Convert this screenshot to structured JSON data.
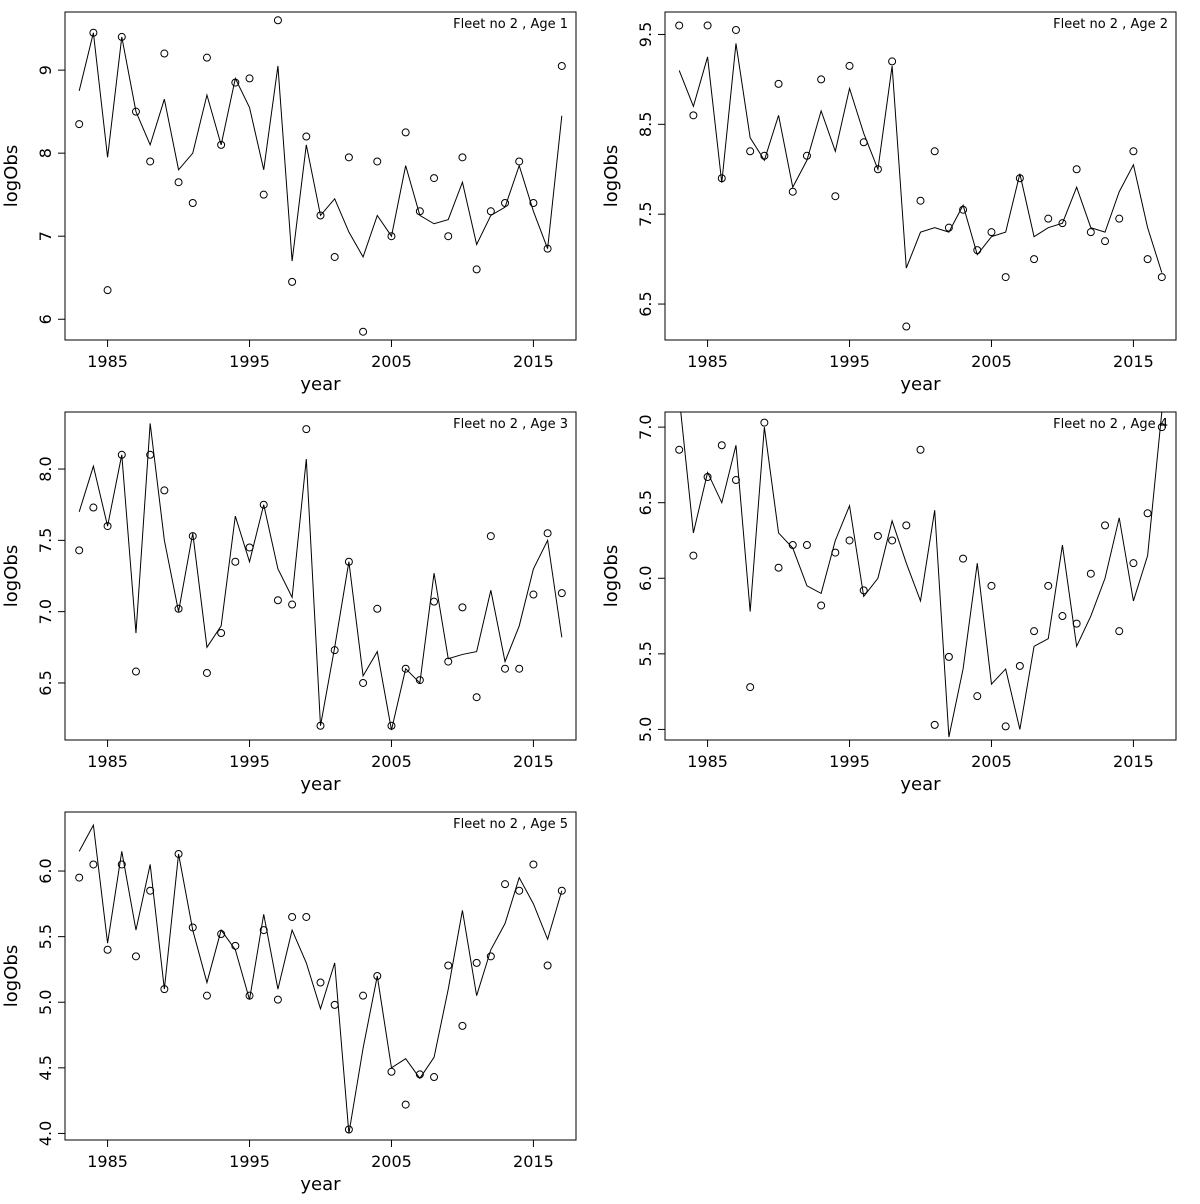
{
  "page": {
    "background": "#ffffff",
    "foreground": "#000000"
  },
  "chart_data": [
    {
      "type": "line",
      "title": "Fleet no 2 , Age 1",
      "xlabel": "year",
      "ylabel": "logObs",
      "legend": "none",
      "grid": false,
      "xlim": [
        1982,
        2018
      ],
      "ylim": [
        5.75,
        9.7
      ],
      "xticks": [
        1985,
        1995,
        2005,
        2015
      ],
      "xtick_labels": [
        "1985",
        "1995",
        "2005",
        "2015"
      ],
      "yticks": [
        6,
        7,
        8,
        9
      ],
      "ytick_labels": [
        "6",
        "7",
        "8",
        "9"
      ],
      "x": [
        1983,
        1984,
        1985,
        1986,
        1987,
        1988,
        1989,
        1990,
        1991,
        1992,
        1993,
        1994,
        1995,
        1996,
        1997,
        1998,
        1999,
        2000,
        2001,
        2002,
        2003,
        2004,
        2005,
        2006,
        2007,
        2008,
        2009,
        2010,
        2011,
        2012,
        2013,
        2014,
        2015,
        2016,
        2017
      ],
      "series": [
        {
          "name": "observed",
          "style": "points",
          "values": [
            8.35,
            9.45,
            6.35,
            9.4,
            8.5,
            7.9,
            9.2,
            7.65,
            7.4,
            9.15,
            8.1,
            8.85,
            8.9,
            7.5,
            9.6,
            6.45,
            8.2,
            7.25,
            6.75,
            7.95,
            5.85,
            7.9,
            7.0,
            8.25,
            7.3,
            7.7,
            7.0,
            7.95,
            6.6,
            7.3,
            7.4,
            7.9,
            7.4,
            6.85,
            9.05
          ]
        },
        {
          "name": "fitted",
          "style": "line",
          "values": [
            8.75,
            9.45,
            7.95,
            9.4,
            8.5,
            8.1,
            8.65,
            7.8,
            8.0,
            8.7,
            8.1,
            8.9,
            8.55,
            7.8,
            9.05,
            6.7,
            8.1,
            7.25,
            7.45,
            7.05,
            6.75,
            7.25,
            7.0,
            7.85,
            7.25,
            7.15,
            7.2,
            7.65,
            6.9,
            7.25,
            7.35,
            7.85,
            7.3,
            6.85,
            8.45
          ]
        }
      ]
    },
    {
      "type": "line",
      "title": "Fleet no 2 , Age 2",
      "xlabel": "year",
      "ylabel": "logObs",
      "legend": "none",
      "grid": false,
      "xlim": [
        1982,
        2018
      ],
      "ylim": [
        6.1,
        9.75
      ],
      "xticks": [
        1985,
        1995,
        2005,
        2015
      ],
      "xtick_labels": [
        "1985",
        "1995",
        "2005",
        "2015"
      ],
      "yticks": [
        6.5,
        7.5,
        8.5,
        9.5
      ],
      "ytick_labels": [
        "6.5",
        "7.5",
        "8.5",
        "9.5"
      ],
      "x": [
        1983,
        1984,
        1985,
        1986,
        1987,
        1988,
        1989,
        1990,
        1991,
        1992,
        1993,
        1994,
        1995,
        1996,
        1997,
        1998,
        1999,
        2000,
        2001,
        2002,
        2003,
        2004,
        2005,
        2006,
        2007,
        2008,
        2009,
        2010,
        2011,
        2012,
        2013,
        2014,
        2015,
        2016,
        2017
      ],
      "series": [
        {
          "name": "observed",
          "style": "points",
          "values": [
            9.6,
            8.6,
            9.6,
            7.9,
            9.55,
            8.2,
            8.15,
            8.95,
            7.75,
            8.15,
            9.0,
            7.7,
            9.15,
            8.3,
            8.0,
            9.2,
            6.25,
            7.65,
            8.2,
            7.35,
            7.55,
            7.1,
            7.3,
            6.8,
            7.9,
            7.0,
            7.45,
            7.4,
            8.0,
            7.3,
            7.2,
            7.45,
            8.2,
            7.0,
            6.8
          ]
        },
        {
          "name": "fitted",
          "style": "line",
          "values": [
            9.1,
            8.7,
            9.25,
            7.85,
            9.4,
            8.35,
            8.1,
            8.6,
            7.8,
            8.1,
            8.65,
            8.2,
            8.9,
            8.4,
            8.0,
            9.15,
            6.9,
            7.3,
            7.35,
            7.3,
            7.6,
            7.05,
            7.25,
            7.3,
            7.95,
            7.25,
            7.35,
            7.4,
            7.8,
            7.35,
            7.3,
            7.75,
            8.05,
            7.35,
            6.85
          ]
        }
      ]
    },
    {
      "type": "line",
      "title": "Fleet no 2 , Age 3",
      "xlabel": "year",
      "ylabel": "logObs",
      "legend": "none",
      "grid": false,
      "xlim": [
        1982,
        2018
      ],
      "ylim": [
        6.1,
        8.4
      ],
      "xticks": [
        1985,
        1995,
        2005,
        2015
      ],
      "xtick_labels": [
        "1985",
        "1995",
        "2005",
        "2015"
      ],
      "yticks": [
        6.5,
        7.0,
        7.5,
        8.0
      ],
      "ytick_labels": [
        "6.5",
        "7.0",
        "7.5",
        "8.0"
      ],
      "x": [
        1983,
        1984,
        1985,
        1986,
        1987,
        1988,
        1989,
        1990,
        1991,
        1992,
        1993,
        1994,
        1995,
        1996,
        1997,
        1998,
        1999,
        2000,
        2001,
        2002,
        2003,
        2004,
        2005,
        2006,
        2007,
        2008,
        2009,
        2010,
        2011,
        2012,
        2013,
        2014,
        2015,
        2016,
        2017
      ],
      "series": [
        {
          "name": "observed",
          "style": "points",
          "values": [
            7.43,
            7.73,
            7.6,
            8.1,
            6.58,
            8.1,
            7.85,
            7.02,
            7.53,
            6.57,
            6.85,
            7.35,
            7.45,
            7.75,
            7.08,
            7.05,
            8.28,
            6.2,
            6.73,
            7.35,
            6.5,
            7.02,
            6.2,
            6.6,
            6.52,
            7.07,
            6.65,
            7.03,
            6.4,
            7.53,
            6.6,
            6.6,
            7.12,
            7.55,
            7.13
          ]
        },
        {
          "name": "fitted",
          "style": "line",
          "values": [
            7.7,
            8.02,
            7.6,
            8.1,
            6.85,
            8.32,
            7.5,
            7.0,
            7.55,
            6.75,
            6.9,
            7.67,
            7.35,
            7.75,
            7.3,
            7.1,
            8.07,
            6.2,
            6.75,
            7.35,
            6.55,
            6.72,
            6.17,
            6.6,
            6.5,
            7.27,
            6.67,
            6.7,
            6.72,
            7.15,
            6.65,
            6.9,
            7.3,
            7.5,
            6.82
          ]
        }
      ]
    },
    {
      "type": "line",
      "title": "Fleet no 2 , Age 4",
      "xlabel": "year",
      "ylabel": "logObs",
      "legend": "none",
      "grid": false,
      "xlim": [
        1982,
        2018
      ],
      "ylim": [
        4.93,
        7.1
      ],
      "xticks": [
        1985,
        1995,
        2005,
        2015
      ],
      "xtick_labels": [
        "1985",
        "1995",
        "2005",
        "2015"
      ],
      "yticks": [
        5.0,
        5.5,
        6.0,
        6.5,
        7.0
      ],
      "ytick_labels": [
        "5.0",
        "5.5",
        "6.0",
        "6.5",
        "7.0"
      ],
      "x": [
        1983,
        1984,
        1985,
        1986,
        1987,
        1988,
        1989,
        1990,
        1991,
        1992,
        1993,
        1994,
        1995,
        1996,
        1997,
        1998,
        1999,
        2000,
        2001,
        2002,
        2003,
        2004,
        2005,
        2006,
        2007,
        2008,
        2009,
        2010,
        2011,
        2012,
        2013,
        2014,
        2015,
        2016,
        2017
      ],
      "series": [
        {
          "name": "observed",
          "style": "points",
          "values": [
            6.85,
            6.15,
            6.67,
            6.88,
            6.65,
            5.28,
            7.03,
            6.07,
            6.22,
            6.22,
            5.82,
            6.17,
            6.25,
            5.92,
            6.28,
            6.25,
            6.35,
            6.85,
            5.03,
            5.48,
            6.13,
            5.22,
            5.95,
            5.02,
            5.42,
            5.65,
            5.95,
            5.75,
            5.7,
            6.03,
            6.35,
            5.65,
            6.1,
            6.43,
            7.0
          ]
        },
        {
          "name": "fitted",
          "style": "line",
          "values": [
            7.2,
            6.3,
            6.7,
            6.5,
            6.88,
            5.78,
            7.0,
            6.3,
            6.2,
            5.95,
            5.9,
            6.25,
            6.48,
            5.88,
            6.0,
            6.38,
            6.1,
            5.85,
            6.45,
            4.95,
            5.4,
            6.1,
            5.3,
            5.4,
            5.0,
            5.55,
            5.6,
            6.22,
            5.55,
            5.75,
            6.0,
            6.4,
            5.85,
            6.15,
            7.1
          ]
        }
      ]
    },
    {
      "type": "line",
      "title": "Fleet no 2 , Age 5",
      "xlabel": "year",
      "ylabel": "logObs",
      "legend": "none",
      "grid": false,
      "xlim": [
        1982,
        2018
      ],
      "ylim": [
        3.95,
        6.45
      ],
      "xticks": [
        1985,
        1995,
        2005,
        2015
      ],
      "xtick_labels": [
        "1985",
        "1995",
        "2005",
        "2015"
      ],
      "yticks": [
        4.0,
        4.5,
        5.0,
        5.5,
        6.0
      ],
      "ytick_labels": [
        "4.0",
        "4.5",
        "5.0",
        "5.5",
        "6.0"
      ],
      "x": [
        1983,
        1984,
        1985,
        1986,
        1987,
        1988,
        1989,
        1990,
        1991,
        1992,
        1993,
        1994,
        1995,
        1996,
        1997,
        1998,
        1999,
        2000,
        2001,
        2002,
        2003,
        2004,
        2005,
        2006,
        2007,
        2008,
        2009,
        2010,
        2011,
        2012,
        2013,
        2014,
        2015,
        2016,
        2017
      ],
      "series": [
        {
          "name": "observed",
          "style": "points",
          "values": [
            5.95,
            6.05,
            5.4,
            6.05,
            5.35,
            5.85,
            5.1,
            6.13,
            5.57,
            5.05,
            5.52,
            5.43,
            5.05,
            5.55,
            5.02,
            5.65,
            5.65,
            5.15,
            4.98,
            4.03,
            5.05,
            5.2,
            4.47,
            4.22,
            4.45,
            4.43,
            5.28,
            4.82,
            5.3,
            5.35,
            5.9,
            5.85,
            6.05,
            5.28,
            5.85
          ]
        },
        {
          "name": "fitted",
          "style": "line",
          "values": [
            6.15,
            6.35,
            5.45,
            6.15,
            5.55,
            6.05,
            5.1,
            6.13,
            5.55,
            5.15,
            5.55,
            5.4,
            5.02,
            5.67,
            5.1,
            5.55,
            5.3,
            4.95,
            5.3,
            4.0,
            4.65,
            5.2,
            4.5,
            4.57,
            4.42,
            4.58,
            5.1,
            5.7,
            5.05,
            5.4,
            5.6,
            5.95,
            5.75,
            5.48,
            5.85
          ]
        }
      ]
    }
  ]
}
